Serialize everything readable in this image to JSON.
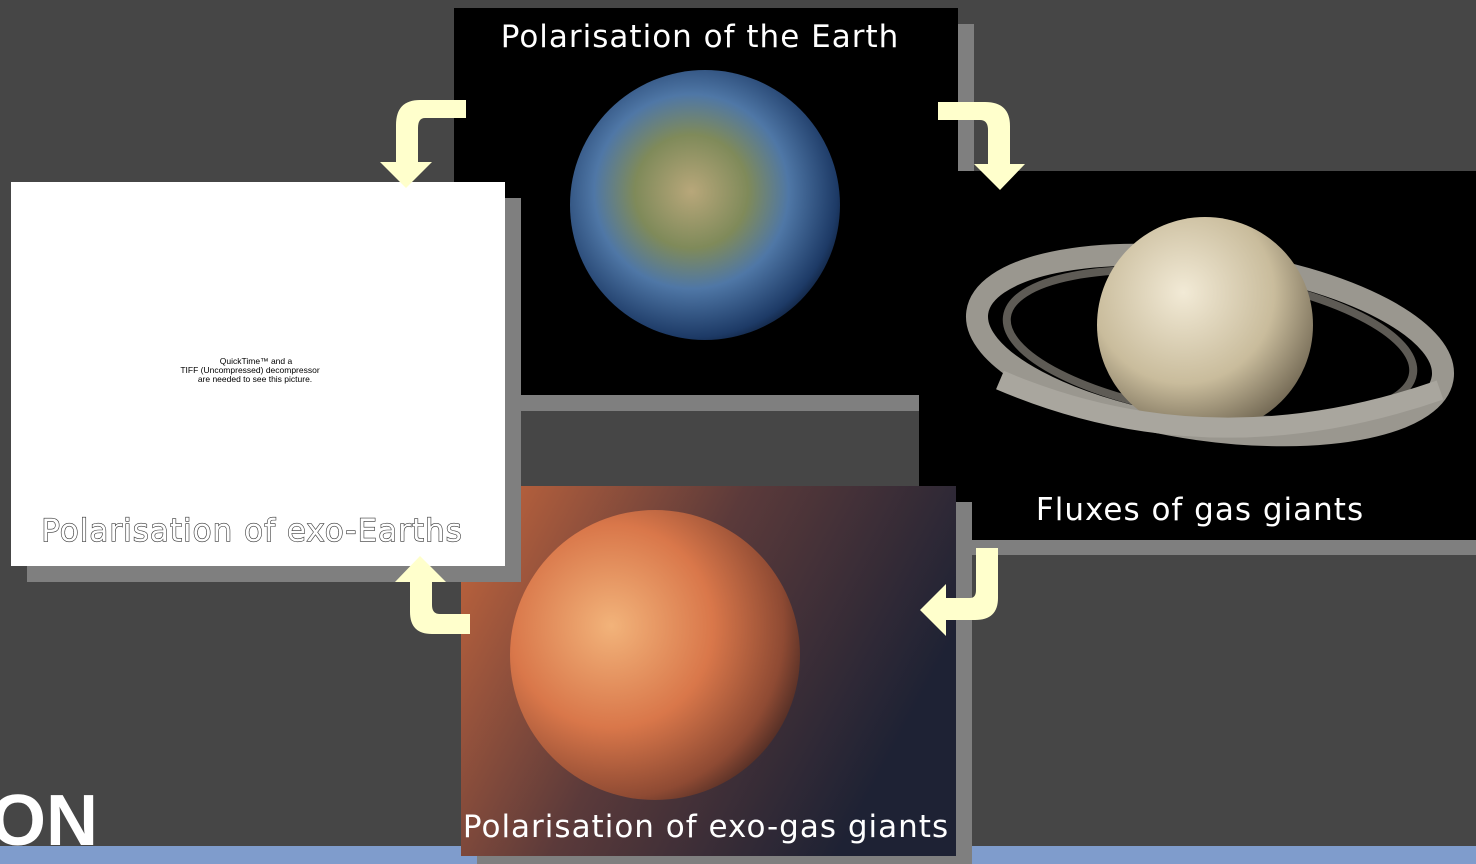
{
  "slide": {
    "panels": [
      {
        "caption": "Polarisation of the Earth"
      },
      {
        "caption": "Fluxes of gas giants"
      },
      {
        "caption": "Polarisation of exo-gas giants"
      },
      {
        "caption": "Polarisation of exo-Earths"
      }
    ],
    "placeholder": {
      "lines": [
        "QuickTime™ and a",
        "TIFF (Uncompressed) decompressor",
        "are needed to see this picture."
      ]
    },
    "logo": "ON"
  }
}
